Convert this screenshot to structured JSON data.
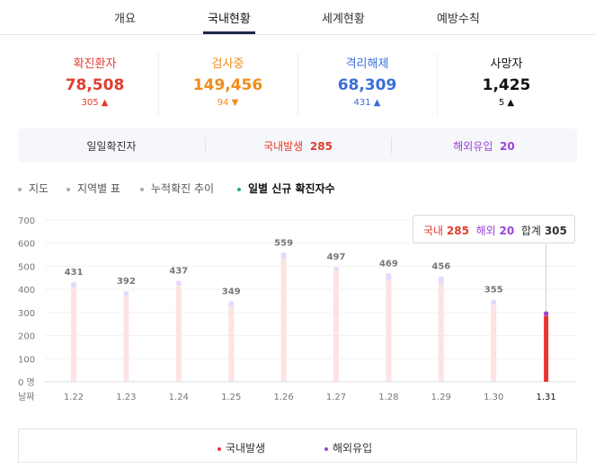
{
  "tabs": [
    {
      "label": "개요"
    },
    {
      "label": "국내현황"
    },
    {
      "label": "세계현황"
    },
    {
      "label": "예방수칙"
    }
  ],
  "stats": [
    {
      "label": "확진환자",
      "value": "78,508",
      "delta": "305",
      "arrow": "▲",
      "color": "#e03d2f"
    },
    {
      "label": "검사중",
      "value": "149,456",
      "delta": "94",
      "arrow": "▼",
      "color": "#f08c1b"
    },
    {
      "label": "격리해제",
      "value": "68,309",
      "delta": "431",
      "arrow": "▲",
      "color": "#3a6fd8"
    },
    {
      "label": "사망자",
      "value": "1,425",
      "delta": "5",
      "arrow": "▲",
      "color": "#111111"
    }
  ],
  "summary": {
    "daily_label": "일일확진자",
    "domestic_label": "국내발생",
    "domestic_value": "285",
    "overseas_label": "해외유입",
    "overseas_value": "20"
  },
  "subtabs": [
    {
      "label": "지도"
    },
    {
      "label": "지역별 표"
    },
    {
      "label": "누적확진 추이"
    },
    {
      "label": "일별 신규 확진자수"
    }
  ],
  "tooltip": {
    "domestic_label": "국내",
    "domestic_value": "285",
    "overseas_label": "해외",
    "overseas_value": "20",
    "total_label": "합계",
    "total_value": "305"
  },
  "legend": {
    "domestic": "국내발생",
    "overseas": "해외유입"
  },
  "colors": {
    "domestic": "#e8352f",
    "overseas": "#9b44d6",
    "domestic_faded": "#fde3e3",
    "overseas_faded": "#e7d8fb",
    "accent_nav": "#1b2a48",
    "green_dot": "#1fb36c"
  },
  "chart_data": {
    "type": "bar",
    "stacked": true,
    "categories": [
      "1.22",
      "1.23",
      "1.24",
      "1.25",
      "1.26",
      "1.27",
      "1.28",
      "1.29",
      "1.30",
      "1.31"
    ],
    "x_axis_prefix": "날짜",
    "y_unit": "명",
    "y_ticks": [
      0,
      100,
      200,
      300,
      400,
      500,
      600,
      700
    ],
    "ylim": [
      0,
      700
    ],
    "totals": [
      "431",
      "392",
      "437",
      "349",
      "559",
      "497",
      "469",
      "456",
      "355",
      ""
    ],
    "series": [
      {
        "name": "국내발생",
        "values": [
          407,
          372,
          415,
          325,
          533,
          482,
          439,
          425,
          334,
          285
        ]
      },
      {
        "name": "해외유입",
        "values": [
          24,
          20,
          22,
          24,
          26,
          15,
          30,
          31,
          21,
          20
        ]
      }
    ],
    "highlighted_index": 9,
    "grid": true,
    "legend_position": "bottom"
  }
}
